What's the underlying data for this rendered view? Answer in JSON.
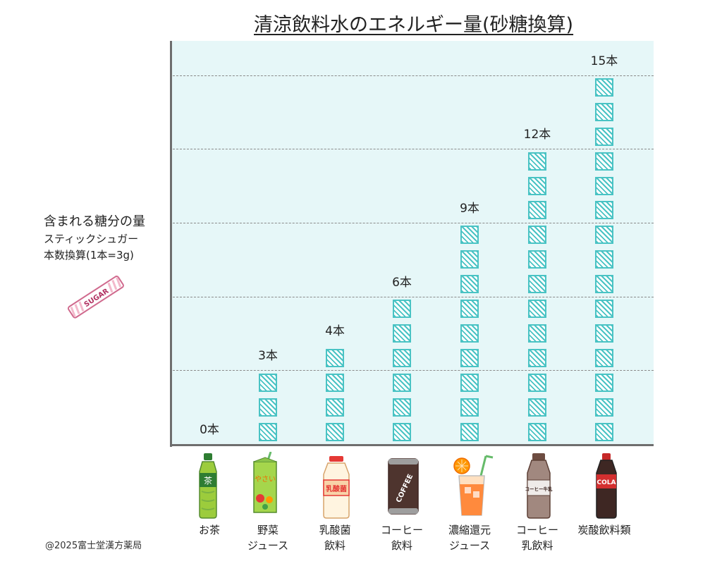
{
  "chart_data": {
    "type": "bar",
    "title": "清涼飲料水のエネルギー量(砂糖換算)",
    "ylabel": "含まれる糖分の量",
    "ylabel_lines": [
      "スティックシュガー",
      "本数換算(1本=3g)"
    ],
    "categories": [
      [
        "お茶"
      ],
      [
        "野菜",
        "ジュース"
      ],
      [
        "乳酸菌",
        "飲料"
      ],
      [
        "コーヒー",
        "飲料"
      ],
      [
        "濃縮還元",
        "ジュース"
      ],
      [
        "コーヒー",
        "乳飲料"
      ],
      [
        "炭酸飲料類"
      ]
    ],
    "values": [
      0,
      3,
      4,
      6,
      9,
      12,
      15
    ],
    "value_labels": [
      "0本",
      "3本",
      "4本",
      "6本",
      "9本",
      "12本",
      "15本"
    ],
    "ylim": [
      0,
      15
    ],
    "grid": true,
    "gridlines_at": [
      3,
      6,
      9,
      12,
      15
    ]
  },
  "icons": [
    "green-tea-bottle-icon",
    "vegetable-juice-carton-icon",
    "lactic-drink-bottle-icon",
    "coffee-can-icon",
    "juice-glass-icon",
    "coffee-milk-bottle-icon",
    "cola-bottle-icon"
  ],
  "icon_texts": {
    "tea": "茶",
    "yasai": "やさい",
    "lactic": "乳酸菌",
    "coffee": "COFFEE",
    "coffee_milk": "コーヒー牛乳",
    "cola": "COLA",
    "sugar": "SUGAR"
  },
  "colors": {
    "plot_background": "#e6f7f8",
    "unit_box": "#49c3c4",
    "axis": "#6e6e6e",
    "grid": "#8a8a8a"
  },
  "copyright": "@2025富士堂漢方薬局"
}
